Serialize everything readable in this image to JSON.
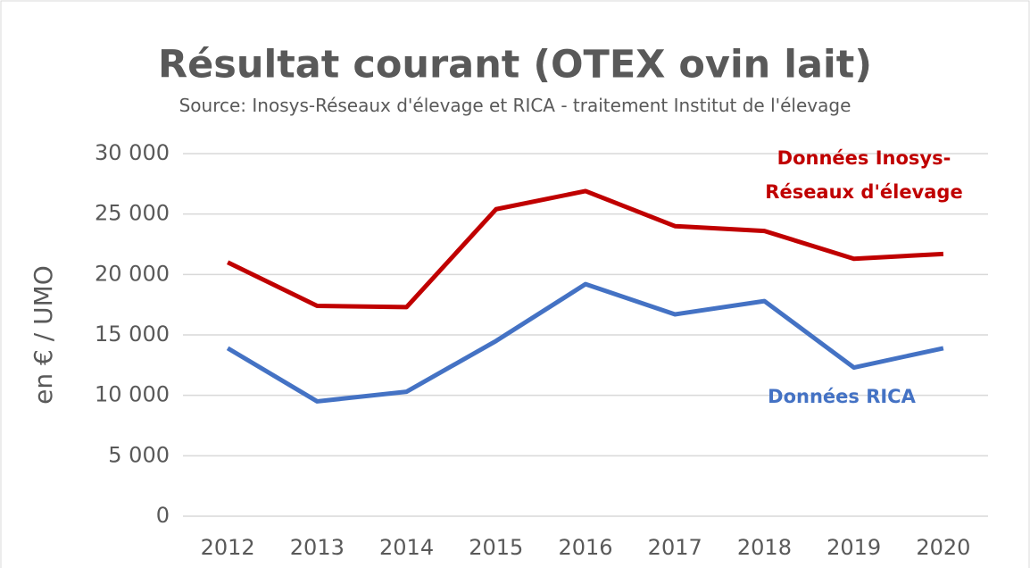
{
  "chart_data": {
    "type": "line",
    "title": "Résultat courant (OTEX ovin lait)",
    "subtitle": "Source: Inosys-Réseaux d'élevage et RICA - traitement Institut de l'élevage",
    "y_label": "en € / UMO",
    "categories": [
      "2012",
      "2013",
      "2014",
      "2015",
      "2016",
      "2017",
      "2018",
      "2019",
      "2020"
    ],
    "series": [
      {
        "name": "Données Inosys-Réseaux d'élevage",
        "color": "#c00000",
        "values": [
          21000,
          17400,
          17300,
          25400,
          26900,
          24000,
          23600,
          21300,
          21700
        ]
      },
      {
        "name": "Données RICA",
        "color": "#4472c4",
        "values": [
          13900,
          9500,
          10300,
          14500,
          19200,
          16700,
          17800,
          12300,
          13900
        ]
      }
    ],
    "ylim": [
      0,
      30000
    ],
    "yticks": [
      0,
      {
        "value": 5000,
        "label": "5 000"
      },
      {
        "value": 10000,
        "label": "10 000"
      },
      {
        "value": 15000,
        "label": "15 000"
      },
      {
        "value": 20000,
        "label": "20 000"
      },
      {
        "value": 25000,
        "label": "25 000"
      },
      {
        "value": 30000,
        "label": "30 000"
      }
    ],
    "grid": true
  }
}
